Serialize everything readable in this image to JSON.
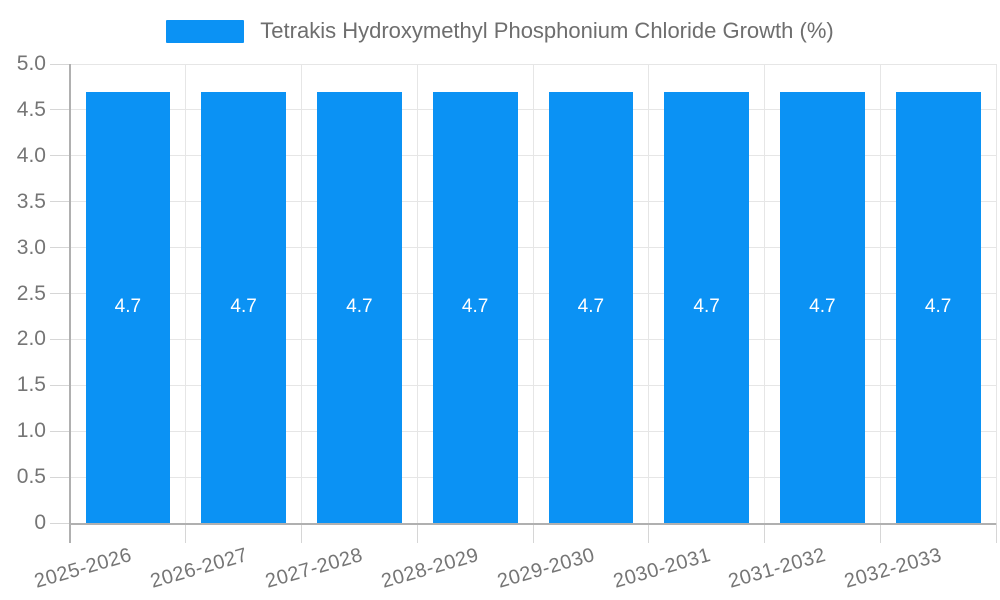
{
  "legend": {
    "label": "Tetrakis Hydroxymethyl Phosphonium Chloride Growth (%)"
  },
  "colors": {
    "bar": "#0b92f4",
    "grid": "#e6e6e6",
    "tick": "#d6d6d6",
    "axis": "#b0b0b0",
    "axis_label_text": "#757575",
    "legend_text": "#6e6e6e",
    "bar_label_text": "#ffffff",
    "background": "#ffffff"
  },
  "chart_data": {
    "type": "bar",
    "title": "Tetrakis Hydroxymethyl Phosphonium Chloride Growth (%)",
    "categories": [
      "2025-2026",
      "2026-2027",
      "2027-2028",
      "2028-2029",
      "2029-2030",
      "2030-2031",
      "2031-2032",
      "2032-2033"
    ],
    "values": [
      4.7,
      4.7,
      4.7,
      4.7,
      4.7,
      4.7,
      4.7,
      4.7
    ],
    "value_labels": [
      "4.7",
      "4.7",
      "4.7",
      "4.7",
      "4.7",
      "4.7",
      "4.7",
      "4.7"
    ],
    "xlabel": "",
    "ylabel": "",
    "ylim": [
      0,
      5
    ],
    "yticks": [
      "5.0",
      "4.5",
      "4.0",
      "3.5",
      "3.0",
      "2.5",
      "2.0",
      "1.5",
      "1.0",
      "0.5",
      "0"
    ],
    "grid": true,
    "legend_position": "top-center"
  }
}
